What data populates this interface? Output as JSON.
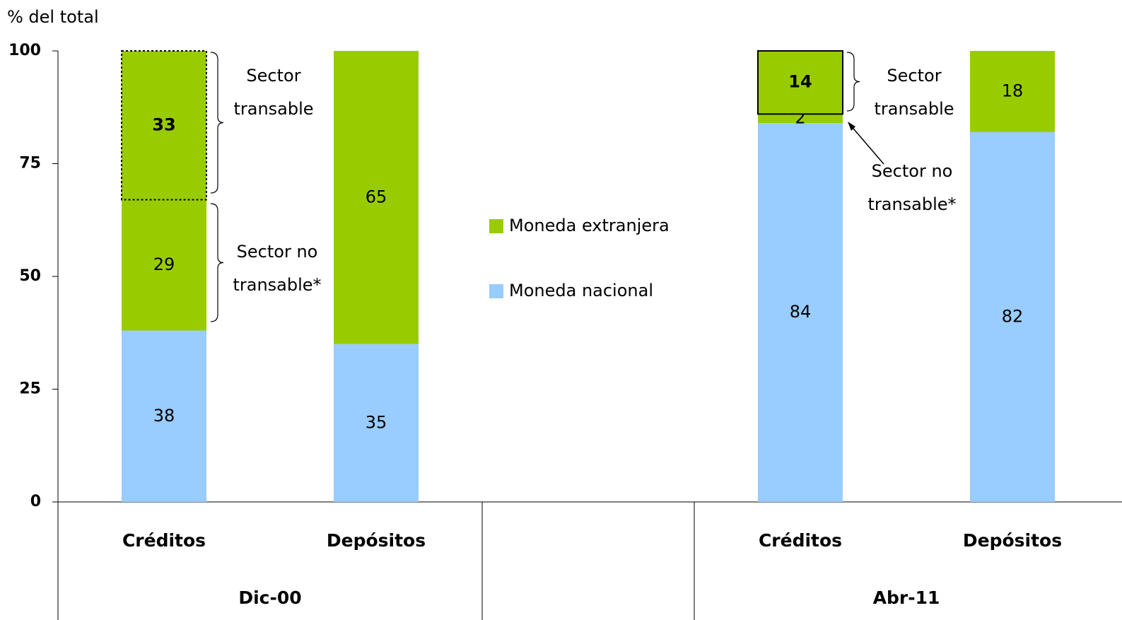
{
  "chart_data": {
    "type": "stacked-bar",
    "y_label": "% del total",
    "categories": [
      "Créditos",
      "Depósitos",
      null,
      "Créditos",
      "Depósitos"
    ],
    "groups": [
      "Dic-00",
      "Abr-11"
    ],
    "ylim": [
      0,
      100
    ],
    "yticks": [
      0,
      25,
      50,
      75,
      100
    ],
    "series": [
      {
        "name": "Moneda nacional",
        "color": "#99ccff",
        "values": [
          38,
          35,
          null,
          84,
          82
        ]
      },
      {
        "name": "Moneda extranjera",
        "color": "#99cc00",
        "values": [
          29,
          65,
          null,
          2,
          18
        ]
      },
      {
        "color": "#99cc00",
        "values": [
          33,
          null,
          null,
          14,
          null
        ],
        "outline": [
          "dotted",
          null,
          null,
          "solid",
          null
        ]
      }
    ],
    "annotations": [
      {
        "lines": [
          "Sector",
          "transable"
        ]
      },
      {
        "lines": [
          "Sector no",
          "transable*"
        ]
      },
      {
        "lines": [
          "Sector",
          "transable"
        ]
      },
      {
        "lines": [
          "Sector no",
          "transable*"
        ]
      }
    ]
  }
}
